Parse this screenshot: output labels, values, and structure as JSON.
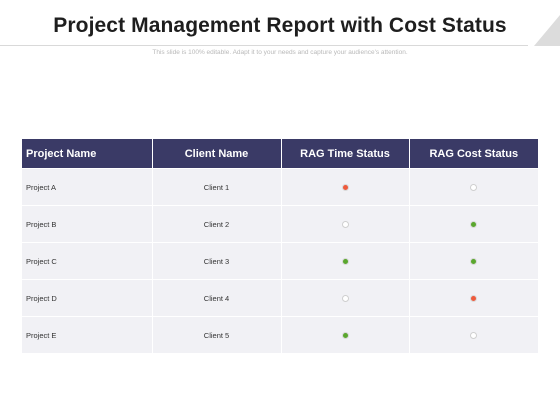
{
  "title": "Project Management Report with Cost Status",
  "subtitle": "This slide is 100% editable. Adapt it to your needs and capture your audience's attention.",
  "colors": {
    "header_bg": "#3a3a66",
    "row_bg": "#f1f1f5",
    "status_red": "#ee5a3c",
    "status_green": "#5aa72e",
    "status_grey": "#ffffff"
  },
  "table": {
    "headers": [
      "Project Name",
      "Client Name",
      "RAG Time Status",
      "RAG Cost Status"
    ],
    "rows": [
      {
        "project": "Project A",
        "client": "Client 1",
        "time_status": "red",
        "cost_status": "grey"
      },
      {
        "project": "Project B",
        "client": "Client 2",
        "time_status": "grey",
        "cost_status": "green"
      },
      {
        "project": "Project C",
        "client": "Client 3",
        "time_status": "green",
        "cost_status": "green"
      },
      {
        "project": "Project D",
        "client": "Client 4",
        "time_status": "grey",
        "cost_status": "red"
      },
      {
        "project": "Project E",
        "client": "Client 5",
        "time_status": "green",
        "cost_status": "grey"
      }
    ]
  }
}
